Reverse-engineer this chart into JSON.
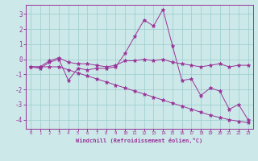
{
  "xlabel": "Windchill (Refroidissement éolien,°C)",
  "bg_color": "#cce8e8",
  "line_color": "#993399",
  "grid_color": "#99cccc",
  "xlim": [
    -0.5,
    23.5
  ],
  "ylim": [
    -4.6,
    3.6
  ],
  "yticks": [
    -4,
    -3,
    -2,
    -1,
    0,
    1,
    2,
    3
  ],
  "xticks": [
    0,
    1,
    2,
    3,
    4,
    5,
    6,
    7,
    8,
    9,
    10,
    11,
    12,
    13,
    14,
    15,
    16,
    17,
    18,
    19,
    20,
    21,
    22,
    23
  ],
  "series": [
    [
      -0.5,
      -0.6,
      -0.2,
      0.0,
      -1.4,
      -0.6,
      -0.7,
      -0.6,
      -0.6,
      -0.5,
      0.4,
      1.5,
      2.6,
      2.2,
      3.3,
      0.9,
      -1.4,
      -1.3,
      -2.4,
      -1.9,
      -2.1,
      -3.3,
      -3.0,
      -4.0
    ],
    [
      -0.5,
      -0.5,
      -0.1,
      0.1,
      -0.2,
      -0.3,
      -0.3,
      -0.4,
      -0.5,
      -0.4,
      -0.1,
      -0.1,
      0.0,
      -0.1,
      0.0,
      -0.2,
      -0.3,
      -0.4,
      -0.5,
      -0.4,
      -0.3,
      -0.5,
      -0.4,
      -0.4
    ],
    [
      -0.5,
      -0.5,
      -0.5,
      -0.5,
      -0.7,
      -0.9,
      -1.1,
      -1.3,
      -1.5,
      -1.7,
      -1.9,
      -2.1,
      -2.3,
      -2.5,
      -2.7,
      -2.9,
      -3.1,
      -3.3,
      -3.5,
      -3.7,
      -3.85,
      -4.0,
      -4.1,
      -4.2
    ]
  ]
}
